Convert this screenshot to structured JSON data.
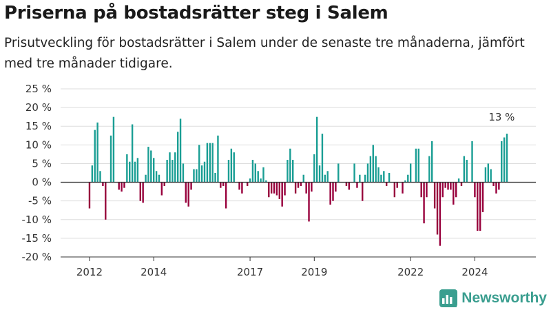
{
  "title": "Priserna på bostadsrätter steg i Salem",
  "subtitle": "Prisutveckling för bostadsrätter i Salem under de senaste tre månaderna, jämfört med tre månader tidigare.",
  "brand": "Newsworthy",
  "colors": {
    "positive": "#1a9e94",
    "negative": "#98003c",
    "axis": "#333333",
    "grid": "#dddddd",
    "brand": "#3a9e8f"
  },
  "chart_data": {
    "type": "bar",
    "title": "Priserna på bostadsrätter steg i Salem",
    "subtitle": "Prisutveckling för bostadsrätter i Salem under de senaste tre månaderna, jämfört med tre månader tidigare.",
    "y_unit": "%",
    "ylim": [
      -20,
      25
    ],
    "y_ticks": [
      -20,
      -15,
      -10,
      -5,
      0,
      5,
      10,
      15,
      20,
      25
    ],
    "y_tick_labels": [
      "-20 %",
      "-15 %",
      "-10 %",
      "-5 %",
      "0 %",
      "5 %",
      "10 %",
      "15 %",
      "20 %",
      "25 %"
    ],
    "x_tick_labels": [
      "2012",
      "2014",
      "2017",
      "2019",
      "2022",
      "2024"
    ],
    "x_tick_positions": [
      2012.0,
      2014.0,
      2017.0,
      2019.0,
      2022.0,
      2024.0
    ],
    "annotation": {
      "text": "13 %",
      "x": 2024.9,
      "y": 13
    },
    "grid": true,
    "start": 2012.0,
    "step": 0.08333,
    "values": [
      -7,
      4.5,
      14,
      16,
      3,
      -1,
      -10,
      0,
      12.5,
      17.5,
      0,
      -2,
      -2.5,
      -1.5,
      7.5,
      5.5,
      15.5,
      5.5,
      6.5,
      -5,
      -5.5,
      2,
      9.5,
      8.5,
      6.5,
      3,
      2,
      -3.5,
      -1,
      6,
      8,
      6,
      8,
      13.5,
      17,
      5,
      -5.5,
      -6.5,
      -2,
      3.5,
      3.5,
      10,
      4.5,
      5.5,
      10.5,
      10.5,
      10.5,
      2.5,
      12.5,
      -1.5,
      -1,
      -7,
      6,
      9,
      8,
      0,
      -2,
      -3,
      0,
      -1,
      1,
      6,
      5,
      3,
      1,
      4,
      0.5,
      -4,
      -3,
      -3,
      -3.5,
      -4.5,
      -6.5,
      -3.5,
      6,
      9,
      6,
      -3,
      -1.5,
      -1,
      2,
      -3,
      -10.5,
      -2.5,
      7.5,
      17.5,
      4.5,
      13,
      2,
      3,
      -6,
      -5,
      -2.5,
      5,
      0,
      0,
      -1,
      -2,
      0,
      5,
      -1.5,
      2,
      -5,
      2,
      5,
      7,
      10,
      7,
      4,
      2,
      3,
      -1,
      2.5,
      0,
      -4,
      -1.5,
      0,
      -3,
      0.5,
      2,
      5,
      0,
      9,
      9,
      -4,
      -11,
      -4,
      7,
      11,
      -7,
      -14,
      -17,
      -4,
      -1.5,
      -2,
      -2,
      -6,
      -4,
      1,
      -1,
      7,
      6,
      0,
      11,
      -4,
      -13,
      -13,
      -8,
      4,
      5,
      3.5,
      -1,
      -3,
      -2,
      11,
      12,
      13
    ]
  }
}
